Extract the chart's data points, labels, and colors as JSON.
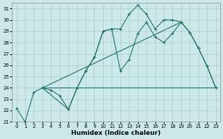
{
  "xlabel": "Humidex (Indice chaleur)",
  "bg_color": "#cce8e8",
  "grid_color": "#aacccc",
  "line_color": "#1a6e6e",
  "xlim": [
    -0.5,
    23.5
  ],
  "ylim": [
    21,
    31.5
  ],
  "yticks": [
    21,
    22,
    23,
    24,
    25,
    26,
    27,
    28,
    29,
    30,
    31
  ],
  "xticks": [
    0,
    1,
    2,
    3,
    4,
    5,
    6,
    7,
    8,
    9,
    10,
    11,
    12,
    13,
    14,
    15,
    16,
    17,
    18,
    19,
    20,
    21,
    22,
    23
  ],
  "line1_x": [
    0,
    1,
    2,
    3,
    4,
    5,
    6,
    7,
    8,
    9,
    10,
    11,
    12,
    13,
    14,
    15,
    16,
    17,
    18,
    19,
    20,
    21,
    22,
    23
  ],
  "line1_y": [
    22.2,
    21.0,
    23.6,
    24.0,
    23.8,
    23.3,
    22.1,
    24.0,
    25.5,
    26.7,
    29.0,
    29.2,
    29.2,
    30.5,
    31.3,
    30.5,
    29.2,
    30.0,
    30.0,
    29.8,
    28.9,
    27.5,
    25.9,
    24.0
  ],
  "line2_x": [
    3,
    6,
    7,
    8,
    9,
    10,
    11,
    12,
    13,
    14,
    15,
    16,
    17,
    18,
    19,
    20,
    21,
    22,
    23
  ],
  "line2_y": [
    24.0,
    22.1,
    24.0,
    25.5,
    26.7,
    29.0,
    29.2,
    25.5,
    26.5,
    28.8,
    29.8,
    28.5,
    28.0,
    28.8,
    29.8,
    28.9,
    27.5,
    25.9,
    24.0
  ],
  "line3_x": [
    3,
    23
  ],
  "line3_y": [
    24.0,
    24.0
  ],
  "line4_x": [
    3,
    19
  ],
  "line4_y": [
    24.0,
    29.8
  ]
}
